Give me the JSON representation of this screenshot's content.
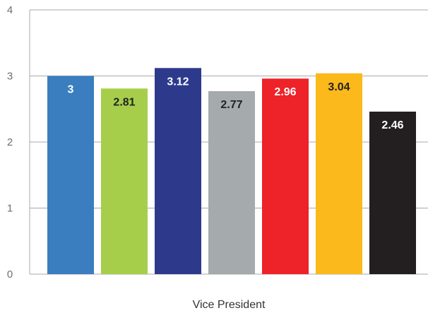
{
  "chart_data": {
    "type": "bar",
    "categories": [
      "Vice President"
    ],
    "series": [
      {
        "values": [
          3
        ],
        "color": "#3a7ebf",
        "label": "3",
        "label_color": "#ffffff"
      },
      {
        "values": [
          2.81
        ],
        "color": "#a6ce4b",
        "label": "2.81",
        "label_color": "#222222"
      },
      {
        "values": [
          3.12
        ],
        "color": "#2d3a8c",
        "label": "3.12",
        "label_color": "#ffffff"
      },
      {
        "values": [
          2.77
        ],
        "color": "#a5abad",
        "label": "2.77",
        "label_color": "#222222"
      },
      {
        "values": [
          2.96
        ],
        "color": "#ee2229",
        "label": "2.96",
        "label_color": "#ffffff"
      },
      {
        "values": [
          3.04
        ],
        "color": "#fbb91b",
        "label": "3.04",
        "label_color": "#222222"
      },
      {
        "values": [
          2.46
        ],
        "color": "#231f20",
        "label": "2.46",
        "label_color": "#ffffff"
      }
    ],
    "ylim": [
      0,
      4
    ],
    "yticks": [
      "0",
      "1",
      "2",
      "3",
      "4"
    ],
    "grid": true,
    "legend": "none",
    "gridline_color": "#a9a9a9"
  }
}
